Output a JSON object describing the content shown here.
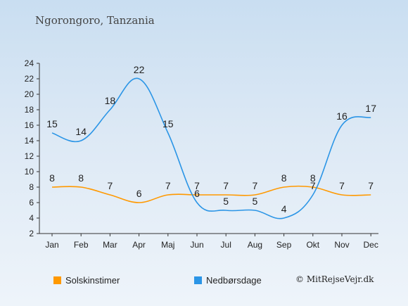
{
  "page": {
    "title": "Ngorongoro, Tanzania",
    "copyright": "© MitRejseVejr.dk"
  },
  "chart_data": {
    "type": "line",
    "categories": [
      "Jan",
      "Feb",
      "Mar",
      "Apr",
      "Maj",
      "Jun",
      "Jul",
      "Aug",
      "Sep",
      "Okt",
      "Nov",
      "Dec"
    ],
    "yticks": [
      2,
      4,
      6,
      8,
      10,
      12,
      14,
      16,
      18,
      20,
      22,
      24
    ],
    "ylim": [
      2,
      24
    ],
    "grid": false,
    "legend_position": "bottom",
    "series": [
      {
        "name": "Solskinstimer",
        "color": "#ff9900",
        "values": [
          8,
          8,
          7,
          6,
          7,
          7,
          7,
          7,
          8,
          8,
          7,
          7
        ]
      },
      {
        "name": "Nedbørsdage",
        "color": "#2b95e6",
        "values": [
          15,
          14,
          18,
          22,
          15,
          6,
          5,
          5,
          4,
          7,
          16,
          17
        ]
      }
    ]
  }
}
